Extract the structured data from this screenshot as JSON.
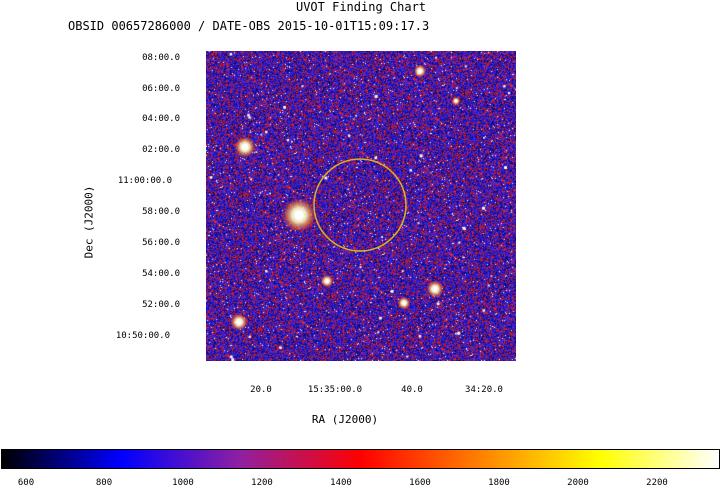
{
  "header": {
    "title": "UVOT Finding Chart",
    "subtitle": "OBSID 00657286000 / DATE-OBS 2015-10-01T15:09:17.3"
  },
  "axes": {
    "xlabel": "RA (J2000)",
    "ylabel": "Dec (J2000)",
    "yticks": [
      "08:00.0",
      "06:00.0",
      "04:00.0",
      "02:00.0",
      "11:00:00.0",
      "58:00.0",
      "56:00.0",
      "54:00.0",
      "52:00.0",
      "10:50:00.0"
    ],
    "xticks": [
      "20.0",
      "15:35:00.0",
      "40.0",
      "34:20.0"
    ]
  },
  "image": {
    "background_colors": [
      "#0a0a7a",
      "#1a1ad8",
      "#5a2ad0",
      "#c81818",
      "#ff2a10",
      "#ffffff"
    ],
    "circle_color": "#e0b020"
  },
  "colorbar": {
    "ticks": [
      "600",
      "800",
      "1000",
      "1200",
      "1400",
      "1600",
      "1800",
      "2000",
      "2200"
    ],
    "colors": [
      "#000000",
      "#0000ff",
      "#9020a0",
      "#ff0000",
      "#ff8000",
      "#ffff00",
      "#ffffff"
    ]
  }
}
